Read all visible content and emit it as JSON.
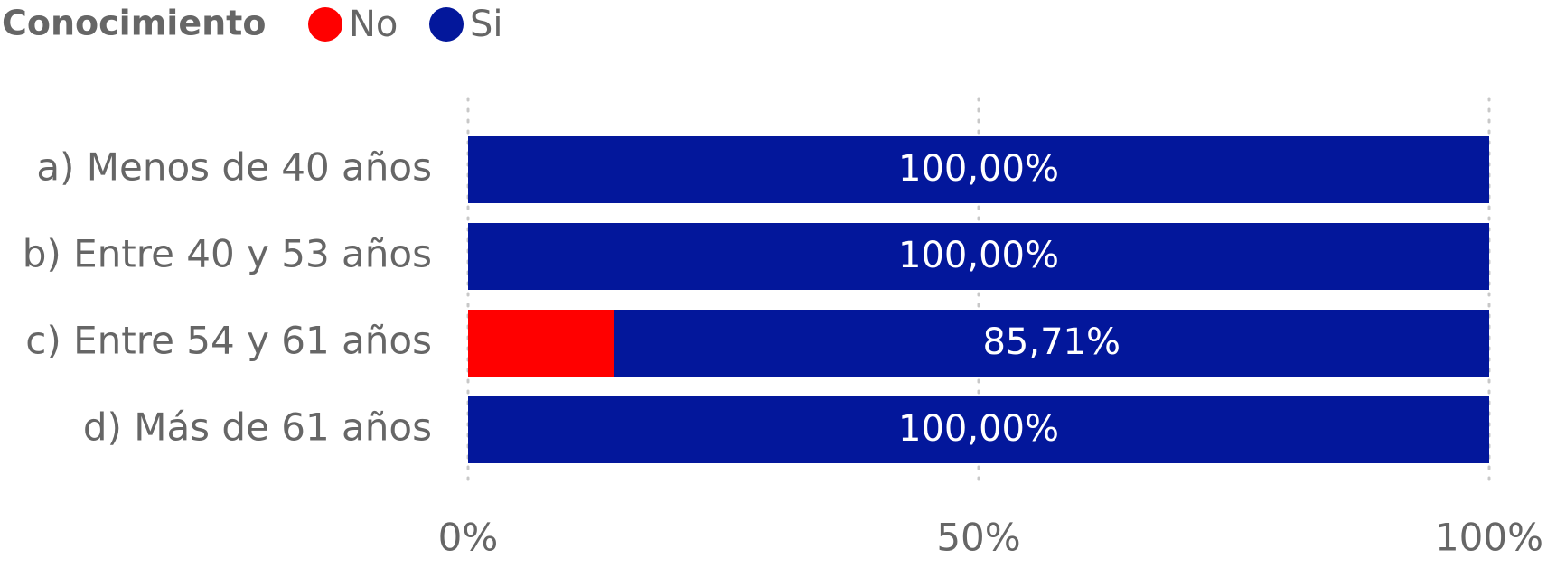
{
  "chart_data": {
    "type": "stacked_bar_horizontal",
    "legend_title": "Conocimiento",
    "categories": [
      "a) Menos de 40 años",
      "b) Entre 40 y 53 años",
      "c) Entre 54 y 61 años",
      "d) Más de 61 años"
    ],
    "series": [
      {
        "name": "No",
        "color": "#ff0000",
        "values": [
          0,
          0,
          14.29,
          0
        ]
      },
      {
        "name": "Si",
        "color": "#03179b",
        "values": [
          100,
          100,
          85.71,
          100
        ],
        "value_labels": [
          "100,00%",
          "100,00%",
          "85,71%",
          "100,00%"
        ]
      }
    ],
    "xlim": [
      0,
      100
    ],
    "xticks": [
      {
        "value": 0,
        "label": "0%"
      },
      {
        "value": 50,
        "label": "50%"
      },
      {
        "value": 100,
        "label": "100%"
      }
    ],
    "grid": true,
    "legend_position": "top-left"
  }
}
